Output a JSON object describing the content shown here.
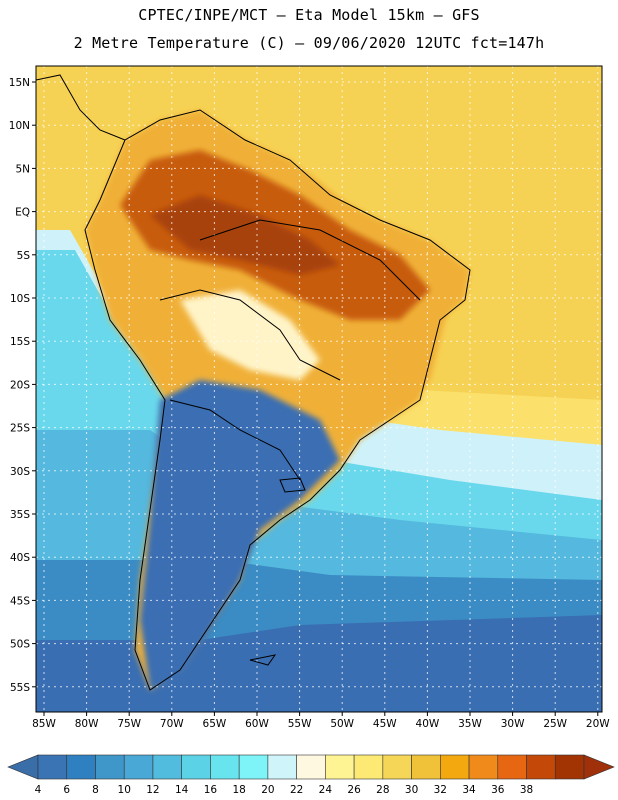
{
  "title_line1": "CPTEC/INPE/MCT –  Eta Model 15km – GFS",
  "title_line2": "2 Metre Temperature (C) – 09/06/2020 12UTC fct=147h",
  "lat_labels": [
    "15N",
    "10N",
    "5N",
    "EQ",
    "5S",
    "10S",
    "15S",
    "20S",
    "25S",
    "30S",
    "35S",
    "40S",
    "45S",
    "50S",
    "55S"
  ],
  "lon_labels": [
    "85W",
    "80W",
    "75W",
    "70W",
    "65W",
    "60W",
    "55W",
    "50W",
    "45W",
    "40W",
    "35W",
    "30W",
    "25W",
    "20W"
  ],
  "colorbar": {
    "labels": [
      "4",
      "6",
      "8",
      "10",
      "12",
      "14",
      "16",
      "18",
      "20",
      "22",
      "24",
      "26",
      "28",
      "30",
      "32",
      "34",
      "36",
      "38"
    ],
    "colors": [
      "#3b74b4",
      "#2f80c0",
      "#3f96c8",
      "#4aa8d6",
      "#52bcde",
      "#5cd2e6",
      "#68e4ee",
      "#7ef4f8",
      "#cff4fa",
      "#fff8e0",
      "#fff494",
      "#fcea74",
      "#f6d656",
      "#f0c23a",
      "#f2a80e",
      "#f08a1a",
      "#e66612",
      "#c44808",
      "#a23404"
    ],
    "left_arrow": "#3a6ea8",
    "right_arrow": "#a0300a"
  },
  "map": {
    "ocean_far_south": "#3a6eb2",
    "ocean_south": "#3b8cc4",
    "ocean_mid": "#55b8de",
    "ocean_cyan": "#6ad8ec",
    "ocean_light": "#cff2fa",
    "ocean_warm": "#fbe06c",
    "ocean_tropical": "#f6d254",
    "land_hot": "#c85c10",
    "land_very_hot": "#a8420a",
    "land_warm": "#f0b038",
    "land_mild": "#fff4c8",
    "patagonia": "#3a6eb2"
  }
}
